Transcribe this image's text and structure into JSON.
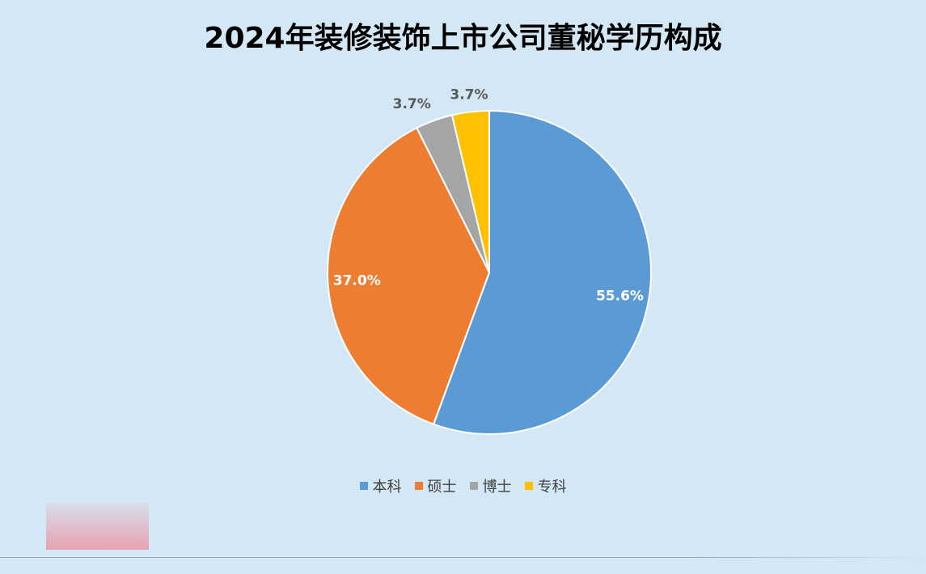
{
  "chart_data": {
    "type": "pie",
    "title": "2024年装修装饰上市公司董秘学历构成",
    "categories": [
      "本科",
      "硕士",
      "博士",
      "专科"
    ],
    "values": [
      55.6,
      37.0,
      3.7,
      3.7
    ],
    "labels": [
      "55.6%",
      "37.0%",
      "3.7%",
      "3.7%"
    ],
    "colors": [
      "#5b9bd5",
      "#ed7d31",
      "#a5a5a5",
      "#ffc000"
    ],
    "legend_position": "bottom"
  }
}
